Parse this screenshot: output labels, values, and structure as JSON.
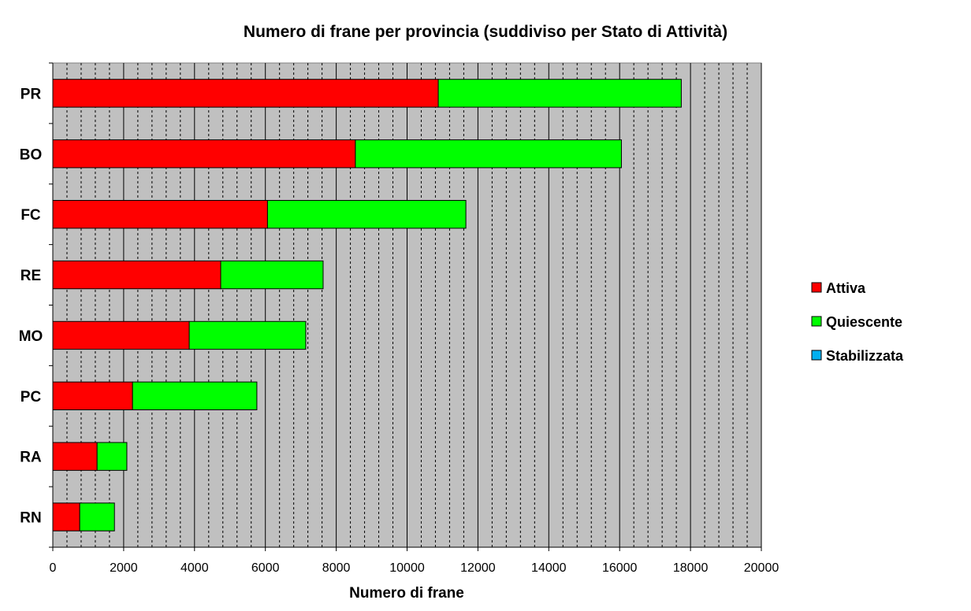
{
  "chart_data": {
    "type": "bar",
    "orientation": "horizontal",
    "stacked": true,
    "title": "Numero di frane per provincia (suddiviso per Stato di Attività)",
    "xlabel": "Numero di frane",
    "ylabel": "",
    "xlim": [
      0,
      20000
    ],
    "xticks": [
      0,
      2000,
      4000,
      6000,
      8000,
      10000,
      12000,
      14000,
      16000,
      18000,
      20000
    ],
    "grid": true,
    "legend_position": "right",
    "categories": [
      "PR",
      "BO",
      "FC",
      "RE",
      "MO",
      "PC",
      "RA",
      "RN"
    ],
    "series": [
      {
        "name": "Attiva",
        "color": "#ff0000",
        "values": [
          10880,
          8540,
          6060,
          4740,
          3850,
          2250,
          1250,
          760
        ]
      },
      {
        "name": "Quiescente",
        "color": "#00ff00",
        "values": [
          6860,
          7510,
          5600,
          2890,
          3290,
          3510,
          840,
          980
        ]
      },
      {
        "name": "Stabilizzata",
        "color": "#00b0f0",
        "values": [
          0,
          0,
          0,
          0,
          0,
          0,
          0,
          0
        ]
      }
    ],
    "plot_background": "#c0c0c0"
  }
}
